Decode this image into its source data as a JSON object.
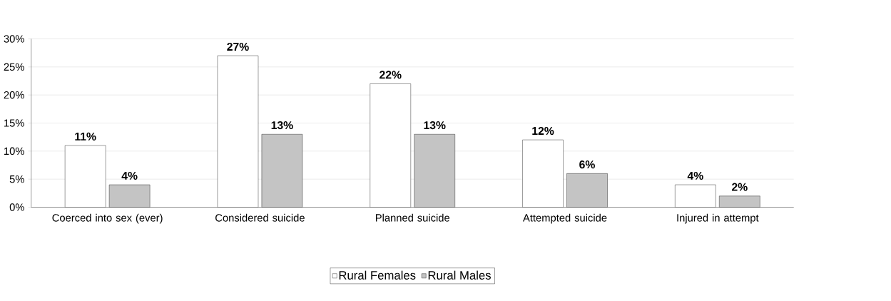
{
  "chart_data": {
    "type": "bar",
    "categories": [
      "Coerced into sex (ever)",
      "Considered suicide",
      "Planned suicide",
      "Attempted suicide",
      "Injured in attempt"
    ],
    "series": [
      {
        "name": "Rural Females",
        "color": "#ffffff",
        "values": [
          11,
          27,
          22,
          12,
          4
        ],
        "value_labels": [
          "11%",
          "27%",
          "22%",
          "12%",
          "4%"
        ]
      },
      {
        "name": "Rural Males",
        "color": "#c4c4c4",
        "values": [
          4,
          13,
          13,
          6,
          2
        ],
        "value_labels": [
          "4%",
          "13%",
          "13%",
          "6%",
          "2%"
        ]
      }
    ],
    "ylim": [
      0,
      30
    ],
    "yticks": [
      {
        "value": 0,
        "label": "0%"
      },
      {
        "value": 5,
        "label": "5%"
      },
      {
        "value": 10,
        "label": "10%"
      },
      {
        "value": 15,
        "label": "15%"
      },
      {
        "value": 20,
        "label": "20%"
      },
      {
        "value": 25,
        "label": "25%"
      },
      {
        "value": 30,
        "label": "30%"
      }
    ],
    "grid": "y",
    "legend": "bottom"
  }
}
